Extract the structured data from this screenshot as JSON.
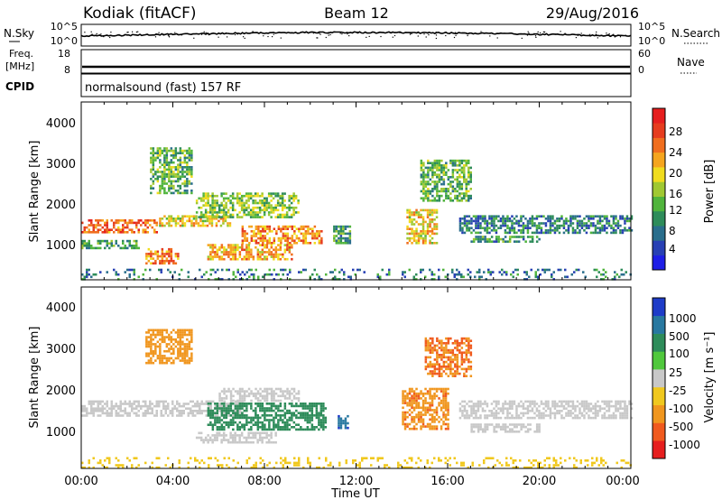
{
  "header": {
    "station": "Kodiak (fitACF)",
    "beam": "Beam 12",
    "date": "29/Aug/2016"
  },
  "top_panels": {
    "nsky_label": "N.Sky",
    "nsky_ticks": [
      "10^5",
      "10^0"
    ],
    "nsearch_label": "N.Search",
    "nsearch_ticks": [
      "10^5",
      "10^0"
    ],
    "freq_label": "Freq.",
    "freq_unit": "[MHz]",
    "freq_ticks": [
      "18",
      "8"
    ],
    "nave_label": "Nave",
    "nave_ticks": [
      "60",
      "0"
    ],
    "cpid_label": "CPID",
    "cpid_text": "normalsound (fast) 157 RF"
  },
  "x_axis": {
    "label": "Time UT",
    "ticks": [
      "00:00",
      "04:00",
      "08:00",
      "12:00",
      "16:00",
      "20:00",
      "00:00"
    ]
  },
  "y_axis": {
    "label": "Slant Range [km]",
    "ticks": [
      "1000",
      "2000",
      "3000",
      "4000"
    ]
  },
  "power_colorbar": {
    "label": "Power [dB]",
    "ticks": [
      "4",
      "8",
      "12",
      "16",
      "20",
      "24",
      "28"
    ],
    "colors": [
      "#1e1ee6",
      "#2840b4",
      "#2a6e8c",
      "#2e8c5a",
      "#50b43c",
      "#a0c832",
      "#f0dc1e",
      "#f5a51e",
      "#f06e1e",
      "#e63c1e",
      "#e61e1e"
    ]
  },
  "velocity_colorbar": {
    "label": "Velocity [m s⁻¹]",
    "ticks": [
      "1000",
      "500",
      "100",
      "25",
      "-25",
      "-100",
      "-500",
      "-1000"
    ],
    "colors": [
      "#1e3cc8",
      "#2878a0",
      "#2e8c5a",
      "#50c83c",
      "#c8c8c8",
      "#f0c81e",
      "#f0961e",
      "#f05a1e",
      "#e61e1e"
    ]
  },
  "chart_data": [
    {
      "type": "heatmap",
      "title": "Power",
      "xlabel": "Time UT",
      "ylabel": "Slant Range [km]",
      "xlim": [
        0,
        24
      ],
      "ylim": [
        180,
        4500
      ],
      "colorbar_range": [
        0,
        30
      ],
      "regions": [
        {
          "t": [
            0,
            3.3
          ],
          "r": [
            1350,
            1650
          ],
          "v": 24
        },
        {
          "t": [
            3.3,
            6.5
          ],
          "r": [
            1500,
            1750
          ],
          "v": 18
        },
        {
          "t": [
            5.0,
            9.5
          ],
          "r": [
            1700,
            2300
          ],
          "v": 14
        },
        {
          "t": [
            7.0,
            10.5
          ],
          "r": [
            1050,
            1500
          ],
          "v": 22
        },
        {
          "t": [
            5.5,
            9.2
          ],
          "r": [
            700,
            1050
          ],
          "v": 20
        },
        {
          "t": [
            2.8,
            4.2
          ],
          "r": [
            600,
            950
          ],
          "v": 22
        },
        {
          "t": [
            0,
            2.5
          ],
          "r": [
            950,
            1150
          ],
          "v": 10
        },
        {
          "t": [
            3.0,
            4.8
          ],
          "r": [
            2300,
            3400
          ],
          "v": 12
        },
        {
          "t": [
            14.2,
            15.5
          ],
          "r": [
            1100,
            1900
          ],
          "v": 18
        },
        {
          "t": [
            14.8,
            17.0
          ],
          "r": [
            2100,
            3100
          ],
          "v": 12
        },
        {
          "t": [
            16.5,
            24
          ],
          "r": [
            1350,
            1750
          ],
          "v": 8
        },
        {
          "t": [
            17.0,
            20.0
          ],
          "r": [
            1100,
            1250
          ],
          "v": 10
        },
        {
          "t": [
            11.0,
            11.7
          ],
          "r": [
            1100,
            1500
          ],
          "v": 10
        },
        {
          "t": [
            0,
            24
          ],
          "r": [
            200,
            450
          ],
          "v": 8
        }
      ]
    },
    {
      "type": "heatmap",
      "title": "Velocity",
      "xlabel": "Time UT",
      "ylabel": "Slant Range [km]",
      "xlim": [
        0,
        24
      ],
      "ylim": [
        180,
        4500
      ],
      "colorbar_range": [
        -1000,
        1000
      ],
      "regions": [
        {
          "t": [
            0,
            7.0
          ],
          "r": [
            1450,
            1800
          ],
          "v": 0
        },
        {
          "t": [
            6.0,
            9.5
          ],
          "r": [
            1800,
            2100
          ],
          "v": 0
        },
        {
          "t": [
            5.5,
            10.7
          ],
          "r": [
            1100,
            1750
          ],
          "v": 100
        },
        {
          "t": [
            5.0,
            8.5
          ],
          "r": [
            800,
            1050
          ],
          "v": 0
        },
        {
          "t": [
            2.8,
            4.8
          ],
          "r": [
            2700,
            3500
          ],
          "v": -300
        },
        {
          "t": [
            14.0,
            16.0
          ],
          "r": [
            1100,
            2100
          ],
          "v": -400
        },
        {
          "t": [
            15.0,
            17.0
          ],
          "r": [
            2400,
            3300
          ],
          "v": -500
        },
        {
          "t": [
            16.5,
            24
          ],
          "r": [
            1400,
            1800
          ],
          "v": 0
        },
        {
          "t": [
            17.0,
            20.0
          ],
          "r": [
            1050,
            1250
          ],
          "v": 0
        },
        {
          "t": [
            11.2,
            11.6
          ],
          "r": [
            1150,
            1450
          ],
          "v": 600
        },
        {
          "t": [
            0,
            24
          ],
          "r": [
            200,
            450
          ],
          "v": -60
        }
      ]
    }
  ]
}
